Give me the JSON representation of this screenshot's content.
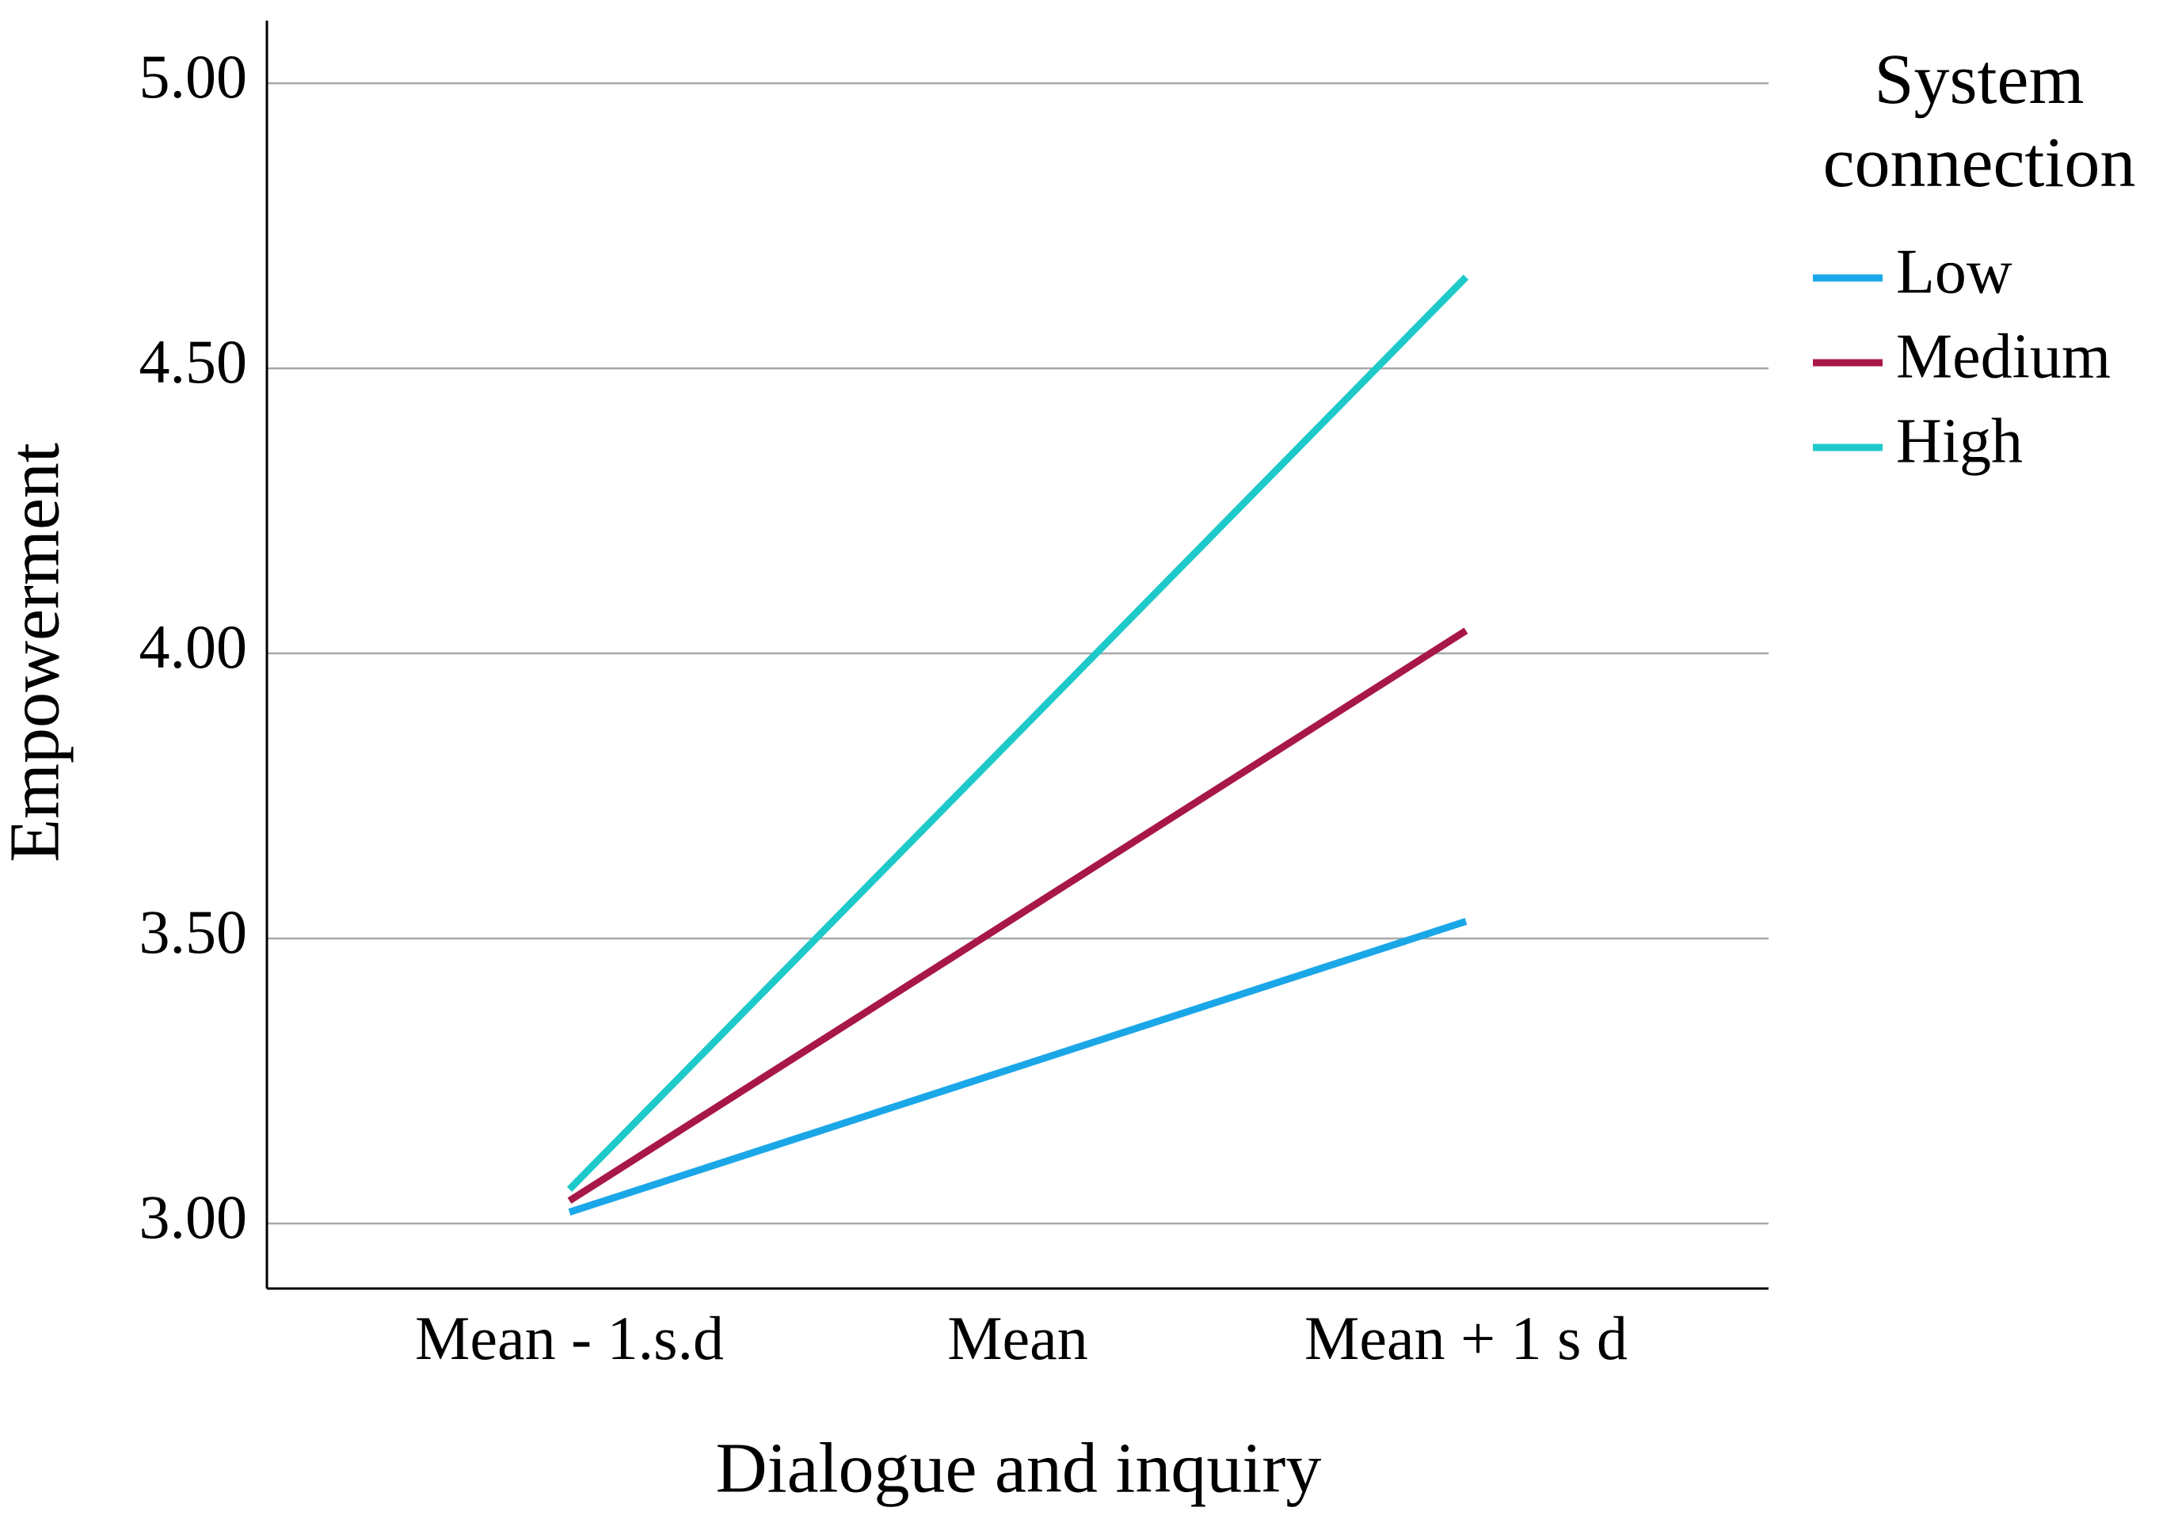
{
  "chart_data": {
    "type": "line",
    "xlabel": "Dialogue and inquiry",
    "ylabel": "Empowerment",
    "legend_title": "System connection",
    "legend": "right",
    "categories": [
      "Mean - 1.s.d",
      "Mean",
      "Mean + 1 s d"
    ],
    "series": [
      {
        "name": "Low",
        "color": "#1aa7e8",
        "values": [
          3.02,
          3.275,
          3.53
        ]
      },
      {
        "name": "Medium",
        "color": "#a8174a",
        "values": [
          3.04,
          3.54,
          4.04
        ]
      },
      {
        "name": "High",
        "color": "#1ec9c9",
        "values": [
          3.06,
          3.86,
          4.66
        ]
      }
    ],
    "ylim": [
      2.886,
      5.11
    ],
    "yticks": [
      {
        "value": 3,
        "label": "3.00"
      },
      {
        "value": 3.5,
        "label": "3.50"
      },
      {
        "value": 4,
        "label": "4.00"
      },
      {
        "value": 4.5,
        "label": "4.50"
      },
      {
        "value": 5,
        "label": "5.00"
      }
    ],
    "grid": true
  }
}
